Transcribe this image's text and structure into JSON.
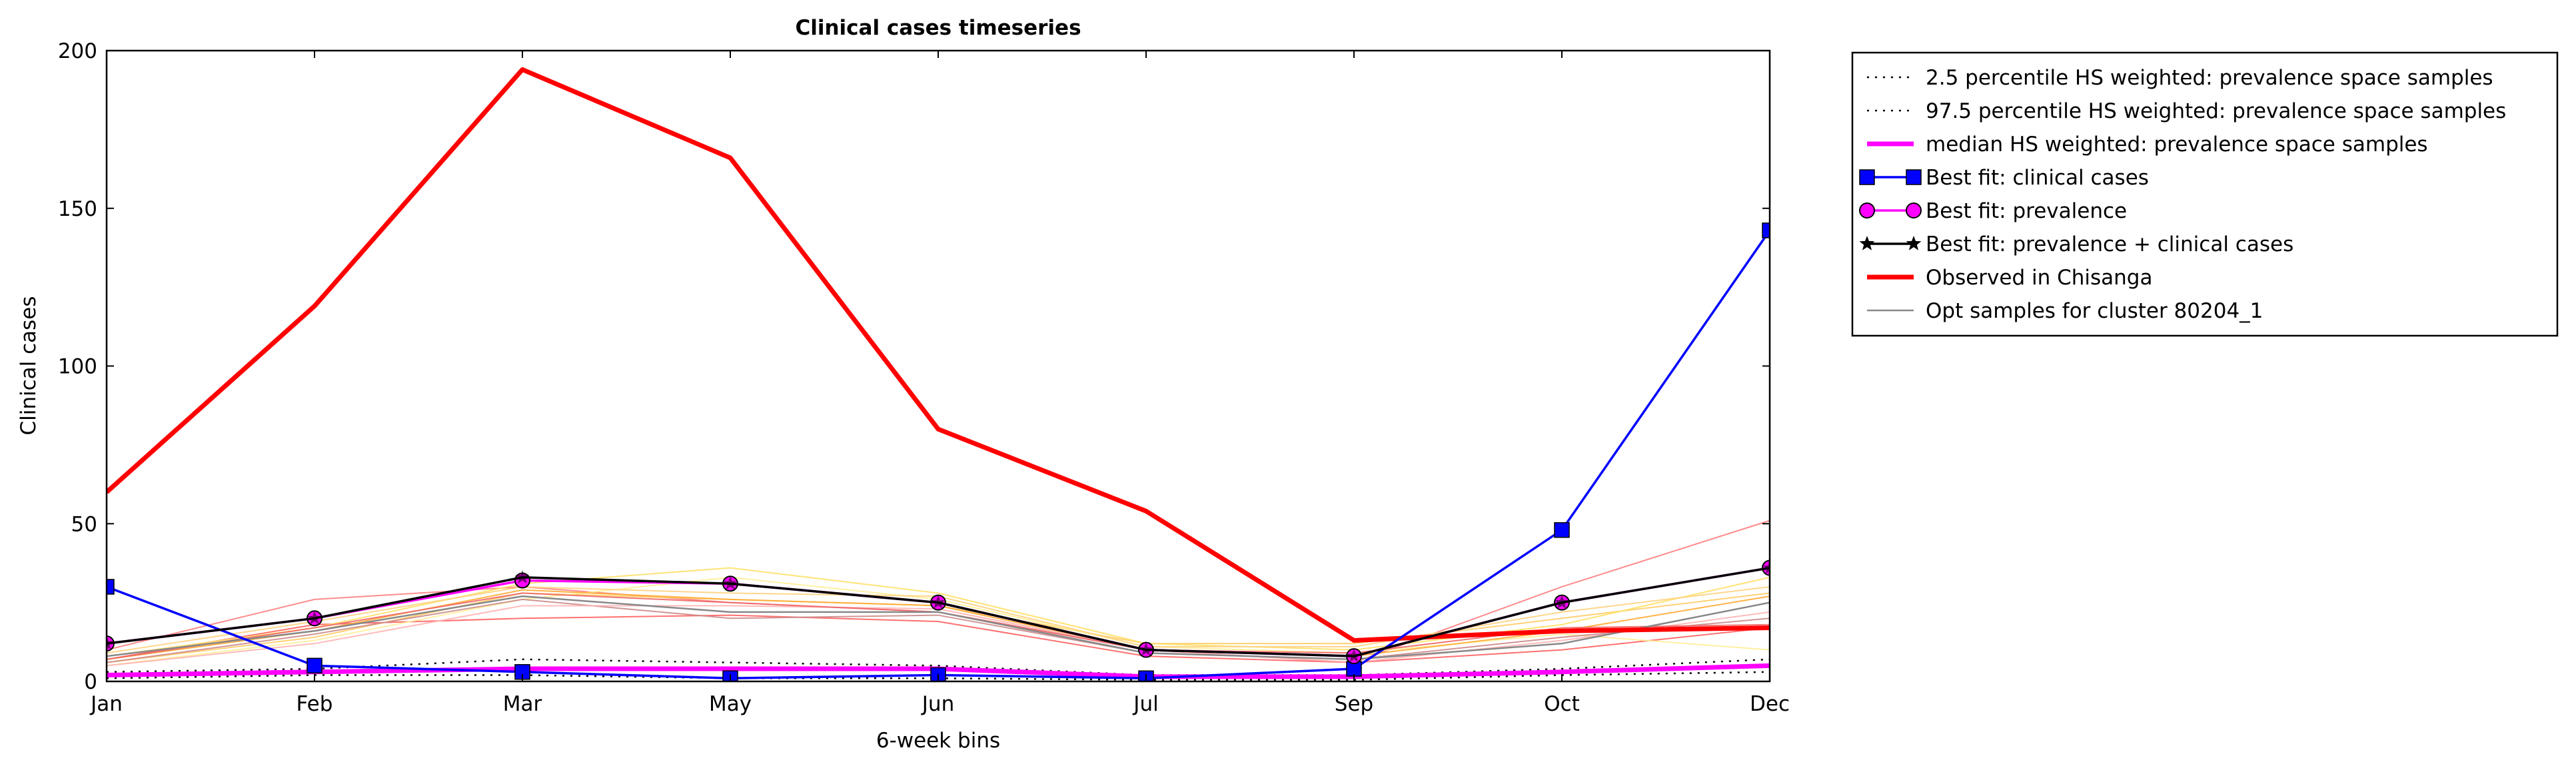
{
  "chart_data": {
    "type": "line",
    "title": "Clinical cases timeseries",
    "xlabel": "6-week bins",
    "ylabel": "Clinical cases",
    "categories": [
      "Jan",
      "Feb",
      "Mar",
      "May",
      "Jun",
      "Jul",
      "Sep",
      "Oct",
      "Dec"
    ],
    "ylim": [
      0,
      200
    ],
    "yticks": [
      0,
      50,
      100,
      150,
      200
    ],
    "legend_position": "outside-right",
    "grid": false,
    "series": [
      {
        "name": "2.5 percentile HS weighted: prevalence space samples",
        "color": "#000000",
        "style": "dotted",
        "values": [
          1,
          2,
          2,
          1,
          1,
          0.5,
          0.5,
          2,
          3
        ]
      },
      {
        "name": "97.5 percentile HS weighted: prevalence space samples",
        "color": "#000000",
        "style": "dotted",
        "values": [
          3,
          4,
          7,
          6,
          5,
          2,
          2,
          4,
          7
        ]
      },
      {
        "name": "median HS weighted: prevalence space samples",
        "color": "#ff00ff",
        "style": "solid-thick",
        "values": [
          2,
          3,
          4,
          4,
          4,
          1.5,
          1.5,
          3,
          5
        ]
      },
      {
        "name": "Best fit: clinical cases",
        "color": "#0000ff",
        "marker": "square",
        "values": [
          30,
          5,
          3,
          1,
          2,
          1,
          4,
          48,
          143
        ]
      },
      {
        "name": "Best fit: prevalence",
        "color": "#ff00ff",
        "marker": "circle",
        "values": [
          12,
          20,
          32,
          31,
          25,
          10,
          8,
          25,
          36
        ]
      },
      {
        "name": "Best fit: prevalence + clinical cases",
        "color": "#000000",
        "marker": "star",
        "values": [
          12,
          20,
          33,
          31,
          25,
          10,
          8,
          25,
          36
        ]
      },
      {
        "name": "Observed in Chisanga",
        "color": "#ff0000",
        "style": "solid-thick",
        "values": [
          60,
          119,
          194,
          166,
          80,
          54,
          13,
          16,
          17
        ]
      },
      {
        "name": "Opt samples for cluster 80204_1",
        "color": "#888888",
        "style": "thin",
        "values": [
          8,
          16,
          27,
          22,
          22,
          9,
          7,
          12,
          25
        ]
      }
    ],
    "opt_sample_lines": [
      {
        "color": "#ff8080",
        "values": [
          10,
          26,
          30,
          25,
          22,
          10,
          6,
          30,
          51
        ]
      },
      {
        "color": "#ff6060",
        "values": [
          7,
          18,
          20,
          21,
          19,
          8,
          6,
          10,
          17
        ]
      },
      {
        "color": "#ffcc66",
        "values": [
          6,
          14,
          28,
          26,
          24,
          12,
          12,
          20,
          28
        ]
      },
      {
        "color": "#ffe066",
        "values": [
          8,
          17,
          31,
          36,
          28,
          12,
          10,
          18,
          33
        ]
      },
      {
        "color": "#ffee99",
        "values": [
          5,
          13,
          26,
          33,
          26,
          11,
          9,
          15,
          10
        ]
      },
      {
        "color": "#ffaa33",
        "values": [
          7,
          16,
          29,
          26,
          24,
          10,
          8,
          16,
          27
        ]
      },
      {
        "color": "#ffd280",
        "values": [
          9,
          19,
          30,
          28,
          27,
          11,
          11,
          22,
          30
        ]
      },
      {
        "color": "#cc8888",
        "values": [
          6,
          15,
          26,
          20,
          21,
          9,
          7,
          14,
          20
        ]
      },
      {
        "color": "#ffb3b3",
        "values": [
          5,
          12,
          24,
          24,
          23,
          10,
          6,
          13,
          22
        ]
      },
      {
        "color": "#ee6666",
        "values": [
          7,
          17,
          28,
          25,
          22,
          10,
          9,
          17,
          18
        ]
      }
    ]
  }
}
